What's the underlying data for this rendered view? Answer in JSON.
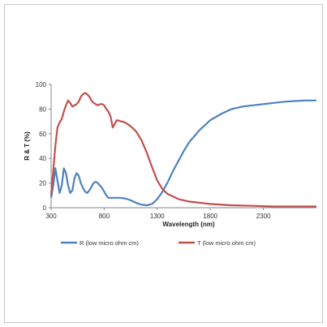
{
  "chart_data": {
    "type": "line",
    "title": "",
    "xlabel": "Wavelength (nm)",
    "ylabel": "R & T (%)",
    "xlim": [
      300,
      2800
    ],
    "ylim": [
      0,
      100
    ],
    "x_ticks": [
      300,
      800,
      1300,
      1800,
      2300
    ],
    "y_ticks": [
      0,
      20,
      40,
      60,
      80,
      100
    ],
    "grid": false,
    "legend_position": "bottom",
    "series": [
      {
        "name": "R (low micro ohm cm)",
        "color": "#4f81bd",
        "points": [
          [
            300,
            8
          ],
          [
            320,
            18
          ],
          [
            340,
            32
          ],
          [
            360,
            22
          ],
          [
            380,
            12
          ],
          [
            400,
            18
          ],
          [
            420,
            32
          ],
          [
            440,
            28
          ],
          [
            460,
            18
          ],
          [
            480,
            12
          ],
          [
            500,
            14
          ],
          [
            520,
            24
          ],
          [
            540,
            28
          ],
          [
            560,
            26
          ],
          [
            580,
            20
          ],
          [
            600,
            16
          ],
          [
            620,
            13
          ],
          [
            640,
            12
          ],
          [
            660,
            14
          ],
          [
            680,
            17
          ],
          [
            700,
            20
          ],
          [
            720,
            21
          ],
          [
            740,
            20
          ],
          [
            760,
            18
          ],
          [
            780,
            16
          ],
          [
            800,
            13
          ],
          [
            820,
            10
          ],
          [
            840,
            8
          ],
          [
            860,
            8
          ],
          [
            900,
            8
          ],
          [
            950,
            8
          ],
          [
            1000,
            7.5
          ],
          [
            1050,
            6
          ],
          [
            1100,
            4
          ],
          [
            1150,
            2.5
          ],
          [
            1200,
            2
          ],
          [
            1250,
            3
          ],
          [
            1300,
            7
          ],
          [
            1350,
            13
          ],
          [
            1400,
            21
          ],
          [
            1450,
            30
          ],
          [
            1500,
            38
          ],
          [
            1550,
            46
          ],
          [
            1600,
            53
          ],
          [
            1700,
            63
          ],
          [
            1800,
            71
          ],
          [
            1900,
            76
          ],
          [
            2000,
            80
          ],
          [
            2100,
            82
          ],
          [
            2200,
            83
          ],
          [
            2300,
            84
          ],
          [
            2400,
            85
          ],
          [
            2500,
            86
          ],
          [
            2600,
            86.5
          ],
          [
            2700,
            87
          ],
          [
            2800,
            87
          ]
        ]
      },
      {
        "name": "T (low micro ohm cm)",
        "color": "#c0504d",
        "points": [
          [
            300,
            10
          ],
          [
            320,
            30
          ],
          [
            340,
            50
          ],
          [
            360,
            65
          ],
          [
            380,
            69
          ],
          [
            400,
            72
          ],
          [
            420,
            78
          ],
          [
            440,
            83
          ],
          [
            460,
            87
          ],
          [
            480,
            85
          ],
          [
            500,
            82
          ],
          [
            520,
            83
          ],
          [
            540,
            84
          ],
          [
            560,
            86
          ],
          [
            580,
            90
          ],
          [
            600,
            92
          ],
          [
            620,
            93
          ],
          [
            640,
            92
          ],
          [
            660,
            90
          ],
          [
            680,
            87
          ],
          [
            700,
            85
          ],
          [
            720,
            84
          ],
          [
            740,
            83
          ],
          [
            760,
            84
          ],
          [
            780,
            84
          ],
          [
            800,
            83
          ],
          [
            820,
            80
          ],
          [
            840,
            78
          ],
          [
            860,
            74
          ],
          [
            880,
            65
          ],
          [
            900,
            68
          ],
          [
            920,
            71
          ],
          [
            960,
            70
          ],
          [
            1000,
            69
          ],
          [
            1050,
            66
          ],
          [
            1100,
            62
          ],
          [
            1150,
            55
          ],
          [
            1200,
            45
          ],
          [
            1250,
            33
          ],
          [
            1300,
            22
          ],
          [
            1350,
            15
          ],
          [
            1400,
            11
          ],
          [
            1450,
            9
          ],
          [
            1500,
            7
          ],
          [
            1600,
            5
          ],
          [
            1700,
            4
          ],
          [
            1800,
            3
          ],
          [
            2000,
            2
          ],
          [
            2200,
            1.5
          ],
          [
            2400,
            1
          ],
          [
            2600,
            1
          ],
          [
            2800,
            1
          ]
        ]
      }
    ]
  }
}
